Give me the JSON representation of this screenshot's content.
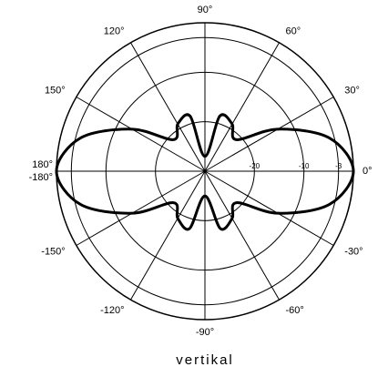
{
  "chart_data": {
    "type": "polar",
    "title": "vertikal",
    "rlim": [
      -30,
      0
    ],
    "rticks": [
      0,
      -3,
      -10,
      -20
    ],
    "angle_ticks": [
      {
        "value": 0,
        "label": "0°"
      },
      {
        "value": 30,
        "label": "30°"
      },
      {
        "value": 60,
        "label": "60°"
      },
      {
        "value": 90,
        "label": "90°"
      },
      {
        "value": 120,
        "label": "120°"
      },
      {
        "value": 150,
        "label": "150°"
      },
      {
        "value": 180,
        "label": "180°"
      },
      {
        "value": -180,
        "label": "-180°"
      },
      {
        "value": -150,
        "label": "-150°"
      },
      {
        "value": -120,
        "label": "-120°"
      },
      {
        "value": -90,
        "label": "-90°"
      },
      {
        "value": -60,
        "label": "-60°"
      },
      {
        "value": -30,
        "label": "-30°"
      }
    ],
    "series": [
      {
        "color": "#000000",
        "angles": [
          0,
          15,
          30,
          45,
          60,
          75,
          90,
          105,
          120,
          135,
          150,
          165,
          180,
          195,
          210,
          225,
          240,
          255,
          270,
          285,
          300,
          315,
          330,
          345
        ],
        "values": [
          0,
          -4,
          -13,
          -21,
          -19,
          -18.5,
          -27,
          -18.5,
          -19,
          -21,
          -13,
          -4,
          0,
          -4,
          -13,
          -21,
          -19,
          -18,
          -25,
          -18,
          -19,
          -21,
          -13,
          -4
        ]
      }
    ]
  }
}
